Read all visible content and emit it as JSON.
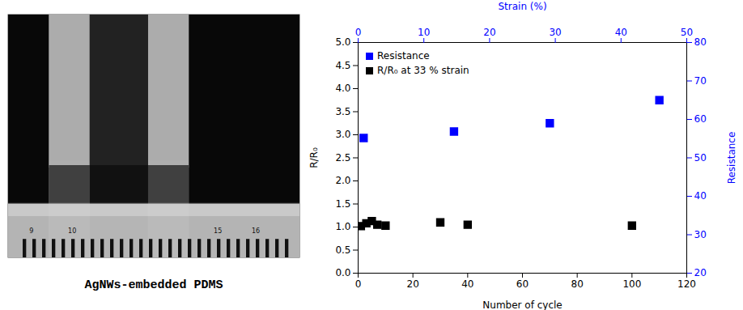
{
  "chart_data": {
    "type": "scatter",
    "xlabel": "Number of cycle",
    "ylabel": "R/R₀",
    "x2label": "Strain (%)",
    "y2label": "Resistance",
    "xlim": [
      0,
      120
    ],
    "xticks": [
      0,
      20,
      40,
      60,
      80,
      100,
      120
    ],
    "ylim": [
      0.0,
      5.0
    ],
    "yticks": [
      {
        "value": 0.0,
        "label": "0.0"
      },
      0.5,
      {
        "value": 1.0,
        "label": "1.0"
      },
      1.5,
      {
        "value": 2.0,
        "label": "2.0"
      },
      2.5,
      {
        "value": 3.0,
        "label": "3.0"
      },
      3.5,
      {
        "value": 4.0,
        "label": "4.0"
      },
      4.5,
      {
        "value": 5.0,
        "label": "5.0"
      }
    ],
    "x2lim": [
      0,
      50
    ],
    "x2ticks": [
      0,
      10,
      20,
      30,
      40,
      50
    ],
    "y2lim": [
      20,
      80
    ],
    "y2ticks": [
      20,
      30,
      40,
      50,
      60,
      70,
      80
    ],
    "legend": "upper left",
    "annotations": [
      "AgNWs-embedded PDMS",
      "9",
      "10",
      "15",
      "16"
    ],
    "series": [
      {
        "name": "Resistance",
        "color": "#0000FF",
        "marker": "square",
        "x": [
          2,
          35,
          70,
          110
        ],
        "values": [
          2.93,
          3.07,
          3.25,
          3.75
        ]
      },
      {
        "name": "R/R₀ at 33 % strain",
        "color": "#000000",
        "marker": "square",
        "x": [
          1,
          3,
          5,
          7,
          10,
          30,
          40,
          100
        ],
        "values": [
          1.02,
          1.08,
          1.13,
          1.05,
          1.03,
          1.1,
          1.05,
          1.03
        ]
      }
    ]
  }
}
